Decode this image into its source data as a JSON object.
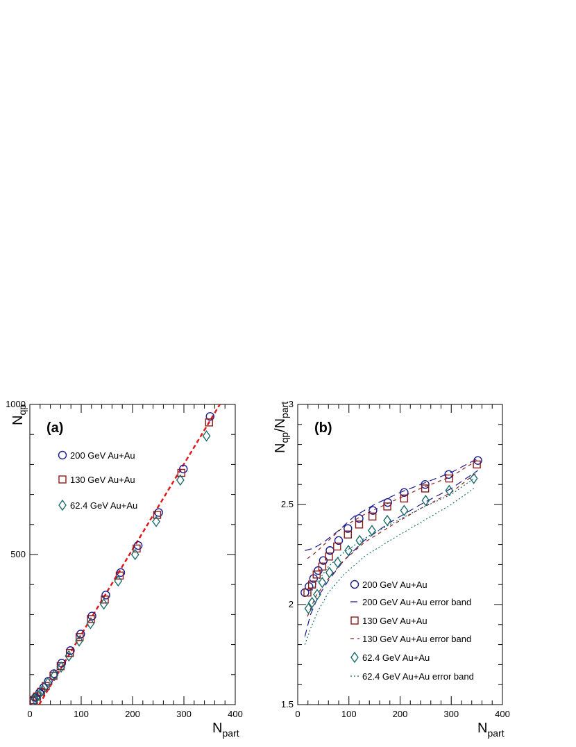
{
  "chart_data": [
    {
      "type": "scatter",
      "panel_label": "(a)",
      "ylabel_main": "N",
      "ylabel_sub": "qp",
      "xlabel_main": "N",
      "xlabel_sub": "part",
      "xlim": [
        0,
        400
      ],
      "ylim": [
        0,
        1000
      ],
      "xticks": [
        0,
        100,
        200,
        300,
        400
      ],
      "yticks": [
        500,
        1000
      ],
      "legend_placement": "top-left",
      "legend": [
        "200 GeV Au+Au",
        "130 GeV Au+Au",
        "62.4 GeV Au+Au"
      ],
      "series": [
        {
          "name": "200 GeV Au+Au",
          "marker": "circle",
          "color": "#1a1a8c",
          "x": [
            6,
            11,
            19,
            27,
            36,
            47,
            62,
            79,
            99,
            121,
            148,
            177,
            211,
            251,
            299,
            351
          ],
          "y": [
            12,
            24,
            40,
            57,
            78,
            103,
            138,
            180,
            235,
            295,
            365,
            440,
            530,
            640,
            785,
            960
          ]
        },
        {
          "name": "130 GeV Au+Au",
          "marker": "square",
          "color": "#8b1a1a",
          "x": [
            8,
            14,
            22,
            31,
            46,
            60,
            78,
            97,
            119,
            146,
            175,
            208,
            248,
            295,
            349
          ],
          "y": [
            15,
            27,
            43,
            62,
            96,
            128,
            172,
            225,
            285,
            350,
            430,
            520,
            632,
            772,
            940
          ]
        },
        {
          "name": "62.4 GeV Au+Au",
          "marker": "diamond",
          "color": "#1a6b6b",
          "x": [
            10,
            16,
            25,
            35,
            48,
            61,
            76,
            96,
            118,
            144,
            172,
            205,
            246,
            293,
            344
          ],
          "y": [
            18,
            30,
            48,
            72,
            98,
            125,
            162,
            212,
            270,
            335,
            412,
            500,
            610,
            748,
            895
          ]
        }
      ],
      "fit_line": {
        "style": "dashed",
        "color": "#e01a1a",
        "x": [
          18,
          370
        ],
        "y": [
          0,
          1000
        ]
      }
    },
    {
      "type": "scatter",
      "panel_label": "(b)",
      "ylabel_main": "N",
      "ylabel_sub": "qp",
      "ylabel_slash": "/N",
      "ylabel_sub2": "part",
      "xlabel_main": "N",
      "xlabel_sub": "part",
      "xlim": [
        0,
        400
      ],
      "ylim": [
        1.5,
        3
      ],
      "xticks": [
        0,
        100,
        200,
        300,
        400
      ],
      "yticks": [
        1.5,
        2,
        2.5,
        3
      ],
      "legend_placement": "bottom-right",
      "legend": [
        "200 GeV Au+Au",
        "200 GeV Au+Au error band",
        "130 GeV Au+Au",
        "130 GeV Au+Au error band",
        "62.4 GeV Au+Au",
        "62.4 GeV Au+Au error band"
      ],
      "series": [
        {
          "name": "200 GeV Au+Au",
          "marker": "circle",
          "color": "#1a1a8c",
          "x": [
            14,
            22,
            31,
            40,
            50,
            63,
            80,
            98,
            120,
            147,
            176,
            208,
            249,
            295,
            352
          ],
          "y": [
            2.06,
            2.09,
            2.13,
            2.17,
            2.22,
            2.27,
            2.32,
            2.38,
            2.43,
            2.47,
            2.51,
            2.56,
            2.6,
            2.65,
            2.72
          ]
        },
        {
          "name": "130 GeV Au+Au",
          "marker": "square",
          "color": "#8b1a1a",
          "x": [
            19,
            28,
            37,
            48,
            61,
            77,
            98,
            120,
            146,
            175,
            208,
            249,
            296,
            350
          ],
          "y": [
            2.06,
            2.1,
            2.15,
            2.19,
            2.24,
            2.29,
            2.35,
            2.4,
            2.44,
            2.49,
            2.53,
            2.58,
            2.63,
            2.7
          ]
        },
        {
          "name": "62.4 GeV Au+Au",
          "marker": "diamond",
          "color": "#1a6b6b",
          "x": [
            21,
            28,
            38,
            48,
            62,
            78,
            99,
            121,
            145,
            175,
            208,
            250,
            296,
            344
          ],
          "y": [
            1.98,
            2.01,
            2.05,
            2.11,
            2.16,
            2.21,
            2.27,
            2.32,
            2.37,
            2.42,
            2.47,
            2.52,
            2.57,
            2.63
          ]
        }
      ],
      "bands": [
        {
          "name": "200 GeV Au+Au error band",
          "style": "long-dash",
          "color": "#1a1a8c",
          "upper": {
            "x": [
              14,
              30,
              50,
              80,
              110,
              150,
              200,
              250,
              300,
              352
            ],
            "y": [
              2.27,
              2.28,
              2.31,
              2.37,
              2.44,
              2.5,
              2.56,
              2.61,
              2.66,
              2.73
            ]
          },
          "lower": {
            "x": [
              14,
              25,
              40,
              60,
              90,
              130,
              180,
              240,
              300,
              352
            ],
            "y": [
              1.84,
              1.95,
              2.04,
              2.12,
              2.22,
              2.32,
              2.41,
              2.5,
              2.58,
              2.67
            ]
          }
        },
        {
          "name": "130 GeV Au+Au error band",
          "style": "short-dash",
          "color": "#8b1a1a",
          "upper": {
            "x": [
              19,
              35,
              60,
              90,
              130,
              180,
              240,
              300,
              350
            ],
            "y": [
              2.23,
              2.26,
              2.32,
              2.39,
              2.45,
              2.51,
              2.58,
              2.64,
              2.72
            ]
          },
          "lower": {
            "x": [
              19,
              35,
              60,
              90,
              130,
              180,
              240,
              300,
              350
            ],
            "y": [
              1.94,
              2.04,
              2.13,
              2.22,
              2.31,
              2.39,
              2.48,
              2.56,
              2.66
            ]
          }
        },
        {
          "name": "62.4 GeV Au+Au error band",
          "style": "dotted",
          "color": "#1a6b6b",
          "upper": {
            "x": [
              21,
              35,
              60,
              90,
              130,
              180,
              240,
              300,
              344
            ],
            "y": [
              2.04,
              2.1,
              2.19,
              2.26,
              2.33,
              2.4,
              2.48,
              2.55,
              2.63
            ]
          },
          "lower": {
            "x": [
              14,
              25,
              40,
              60,
              90,
              130,
              180,
              240,
              300,
              344
            ],
            "y": [
              1.8,
              1.88,
              1.97,
              2.06,
              2.15,
              2.24,
              2.32,
              2.41,
              2.5,
              2.58
            ]
          }
        }
      ]
    }
  ]
}
